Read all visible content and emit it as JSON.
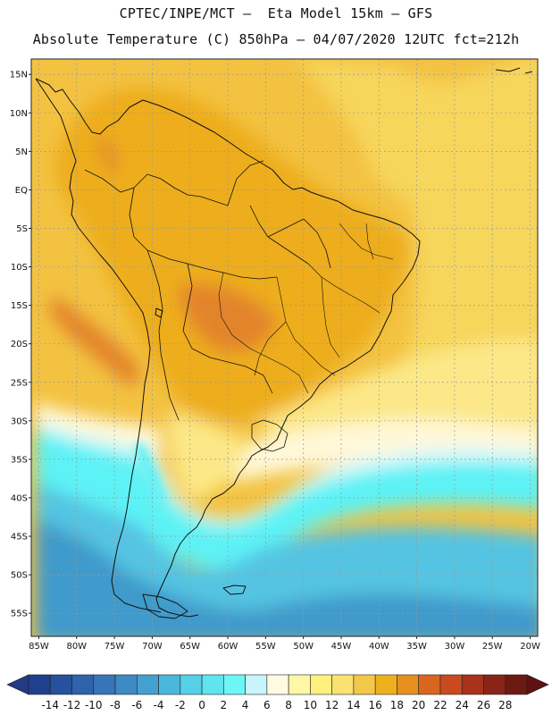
{
  "header": {
    "line1": "CPTEC/INPE/MCT –  Eta Model 15km – GFS",
    "line2": "Absolute Temperature (C) 850hPa – 04/07/2020 12UTC fct=212h"
  },
  "axes": {
    "lat_labels": [
      "15N",
      "10N",
      "5N",
      "EQ",
      "5S",
      "10S",
      "15S",
      "20S",
      "25S",
      "30S",
      "35S",
      "40S",
      "45S",
      "50S",
      "55S"
    ],
    "lat_values": [
      15,
      10,
      5,
      0,
      -5,
      -10,
      -15,
      -20,
      -25,
      -30,
      -35,
      -40,
      -45,
      -50,
      -55
    ],
    "lon_labels": [
      "85W",
      "80W",
      "75W",
      "70W",
      "65W",
      "60W",
      "55W",
      "50W",
      "45W",
      "40W",
      "35W",
      "30W",
      "25W",
      "20W"
    ],
    "lon_values": [
      -85,
      -80,
      -75,
      -70,
      -65,
      -60,
      -55,
      -50,
      -45,
      -40,
      -35,
      -30,
      -25,
      -20
    ],
    "lat_range": [
      -58,
      17
    ],
    "lon_range": [
      -86,
      -19
    ]
  },
  "colorbar": {
    "labels": [
      "-14",
      "-12",
      "-10",
      "-8",
      "-6",
      "-4",
      "-2",
      "0",
      "2",
      "4",
      "6",
      "8",
      "10",
      "12",
      "14",
      "16",
      "18",
      "20",
      "22",
      "24",
      "26",
      "28"
    ],
    "colors": [
      "#1f3f8f",
      "#27519d",
      "#2f63ab",
      "#3676b8",
      "#3d8ac4",
      "#44a0d0",
      "#4ab8dc",
      "#55d0e6",
      "#60e4ef",
      "#6cf6f6",
      "#c8f4fb",
      "#fffbe3",
      "#fff6a6",
      "#fff07e",
      "#fae270",
      "#f2c84a",
      "#eeb11e",
      "#e7901e",
      "#d9661e",
      "#c94a1f",
      "#a8321a",
      "#8a2419",
      "#6d1a12"
    ],
    "under_color": "#233a85",
    "over_color": "#5e1212"
  },
  "field_colors": {
    "orange": "#edad1e",
    "light_orange": "#f3c241",
    "yellow": "#f7d65c",
    "pale": "#fce888",
    "cream": "#fff8d8",
    "white_cyan": "#d8f8fb",
    "cyan": "#5df2f5",
    "light_blue": "#55c4e2",
    "mid_blue": "#3f9acb",
    "dark_orange": "#e3842a",
    "land_mid": "#e9a628",
    "ocean_deep": "#2e6fb3"
  }
}
